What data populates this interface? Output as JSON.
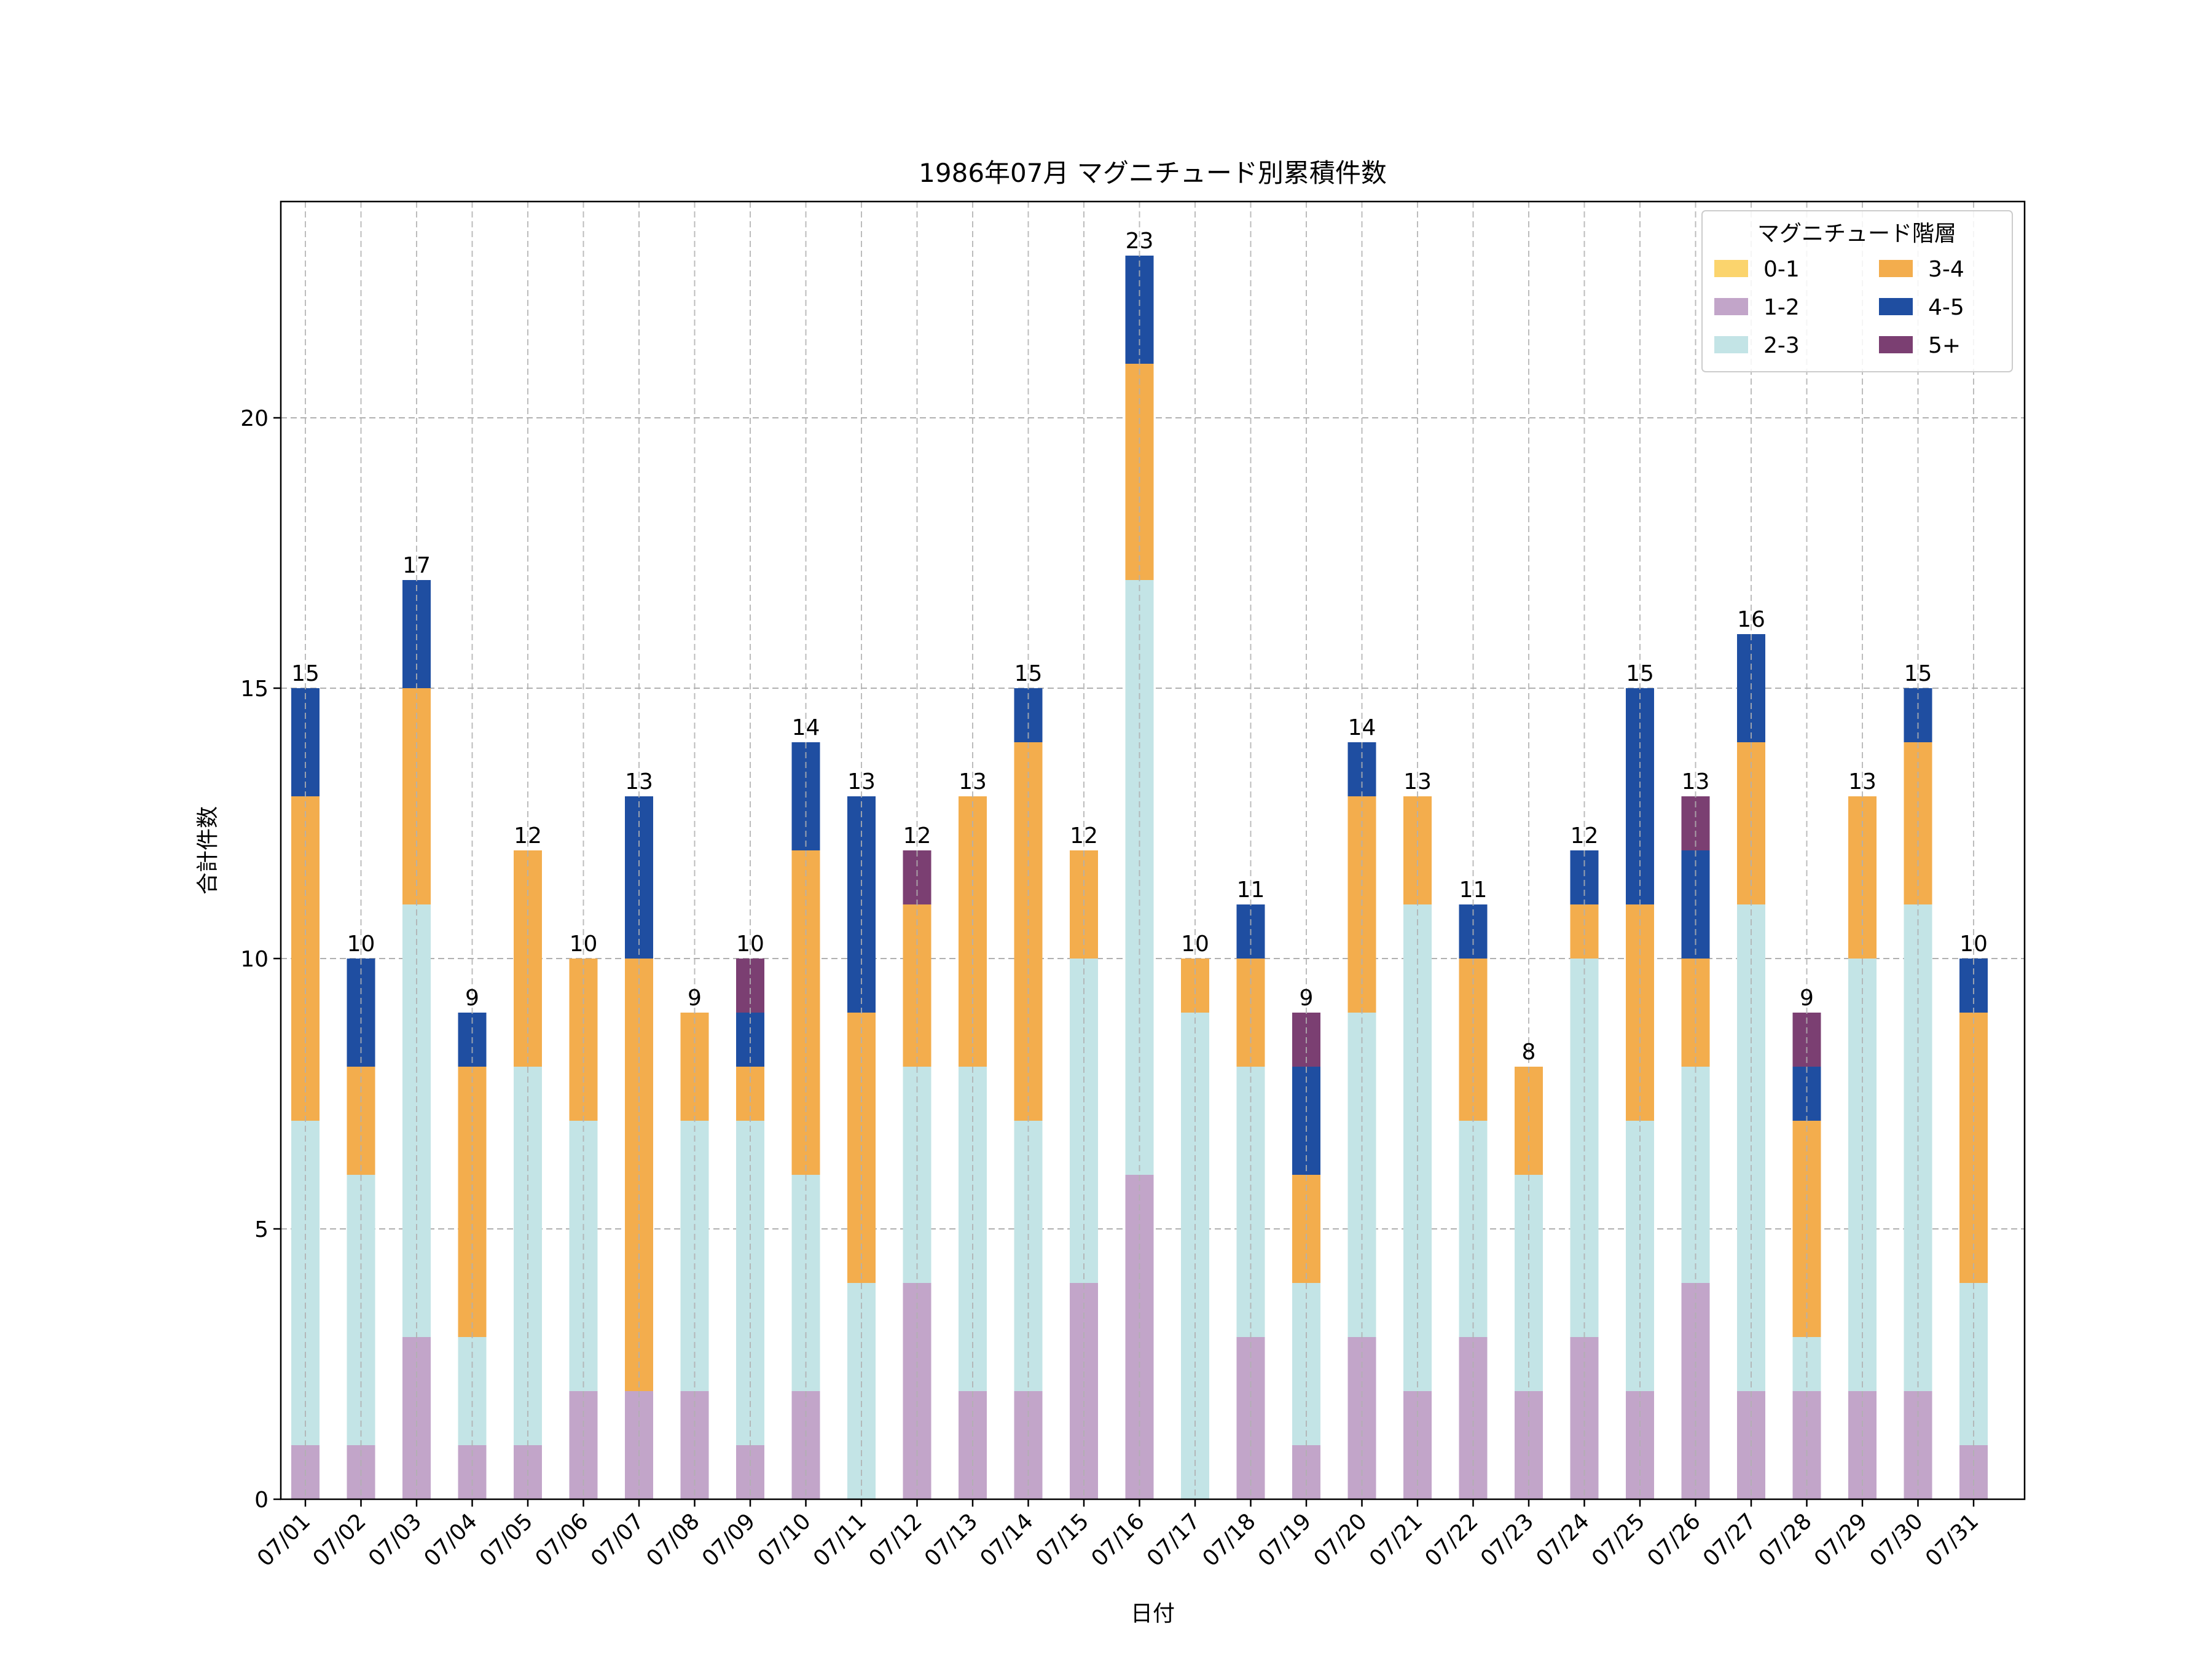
{
  "chart_data": {
    "type": "bar",
    "stacked": true,
    "title": "1986年07月 マグニチュード別累積件数",
    "xlabel": "日付",
    "ylabel": "合計件数",
    "ylim": [
      0,
      24
    ],
    "yticks": [
      0,
      5,
      10,
      15,
      20
    ],
    "grid": true,
    "legend_title": "マグニチュード階層",
    "legend_position": "top-right",
    "categories": [
      "07/01",
      "07/02",
      "07/03",
      "07/04",
      "07/05",
      "07/06",
      "07/07",
      "07/08",
      "07/09",
      "07/10",
      "07/11",
      "07/12",
      "07/13",
      "07/14",
      "07/15",
      "07/16",
      "07/17",
      "07/18",
      "07/19",
      "07/20",
      "07/21",
      "07/22",
      "07/23",
      "07/24",
      "07/25",
      "07/26",
      "07/27",
      "07/28",
      "07/29",
      "07/30",
      "07/31"
    ],
    "series": [
      {
        "name": "0-1",
        "color": "#fbd46d",
        "values": [
          0,
          0,
          0,
          0,
          0,
          0,
          0,
          0,
          0,
          0,
          0,
          0,
          0,
          0,
          0,
          0,
          0,
          0,
          0,
          0,
          0,
          0,
          0,
          0,
          0,
          0,
          0,
          0,
          0,
          0,
          0
        ]
      },
      {
        "name": "1-2",
        "color": "#c2a5c9",
        "values": [
          1,
          1,
          3,
          1,
          1,
          2,
          2,
          2,
          1,
          2,
          0,
          4,
          2,
          2,
          4,
          6,
          0,
          3,
          1,
          3,
          2,
          3,
          2,
          3,
          2,
          4,
          2,
          2,
          2,
          2,
          1
        ]
      },
      {
        "name": "2-3",
        "color": "#c3e4e6",
        "values": [
          6,
          5,
          8,
          2,
          7,
          5,
          0,
          5,
          6,
          4,
          4,
          4,
          6,
          5,
          6,
          11,
          9,
          5,
          3,
          6,
          9,
          4,
          4,
          7,
          5,
          4,
          9,
          1,
          8,
          9,
          3
        ]
      },
      {
        "name": "3-4",
        "color": "#f3ad4d",
        "values": [
          6,
          2,
          4,
          5,
          4,
          3,
          8,
          2,
          1,
          6,
          5,
          3,
          5,
          7,
          2,
          4,
          1,
          2,
          2,
          4,
          2,
          3,
          2,
          1,
          4,
          2,
          3,
          4,
          3,
          3,
          5
        ]
      },
      {
        "name": "4-5",
        "color": "#1f4ea1",
        "values": [
          2,
          2,
          2,
          1,
          0,
          0,
          3,
          0,
          1,
          2,
          4,
          0,
          0,
          1,
          0,
          2,
          0,
          1,
          2,
          1,
          0,
          1,
          0,
          1,
          4,
          2,
          2,
          1,
          0,
          1,
          1
        ]
      },
      {
        "name": "5+",
        "color": "#7b3f72",
        "values": [
          0,
          0,
          0,
          0,
          0,
          0,
          0,
          0,
          1,
          0,
          0,
          1,
          0,
          0,
          0,
          0,
          0,
          0,
          1,
          0,
          0,
          0,
          0,
          0,
          0,
          1,
          0,
          1,
          0,
          0,
          0
        ]
      }
    ],
    "totals": [
      15,
      10,
      17,
      9,
      12,
      10,
      13,
      9,
      10,
      14,
      13,
      12,
      13,
      15,
      12,
      23,
      10,
      11,
      9,
      14,
      13,
      11,
      8,
      12,
      15,
      13,
      16,
      9,
      13,
      15,
      10
    ]
  }
}
